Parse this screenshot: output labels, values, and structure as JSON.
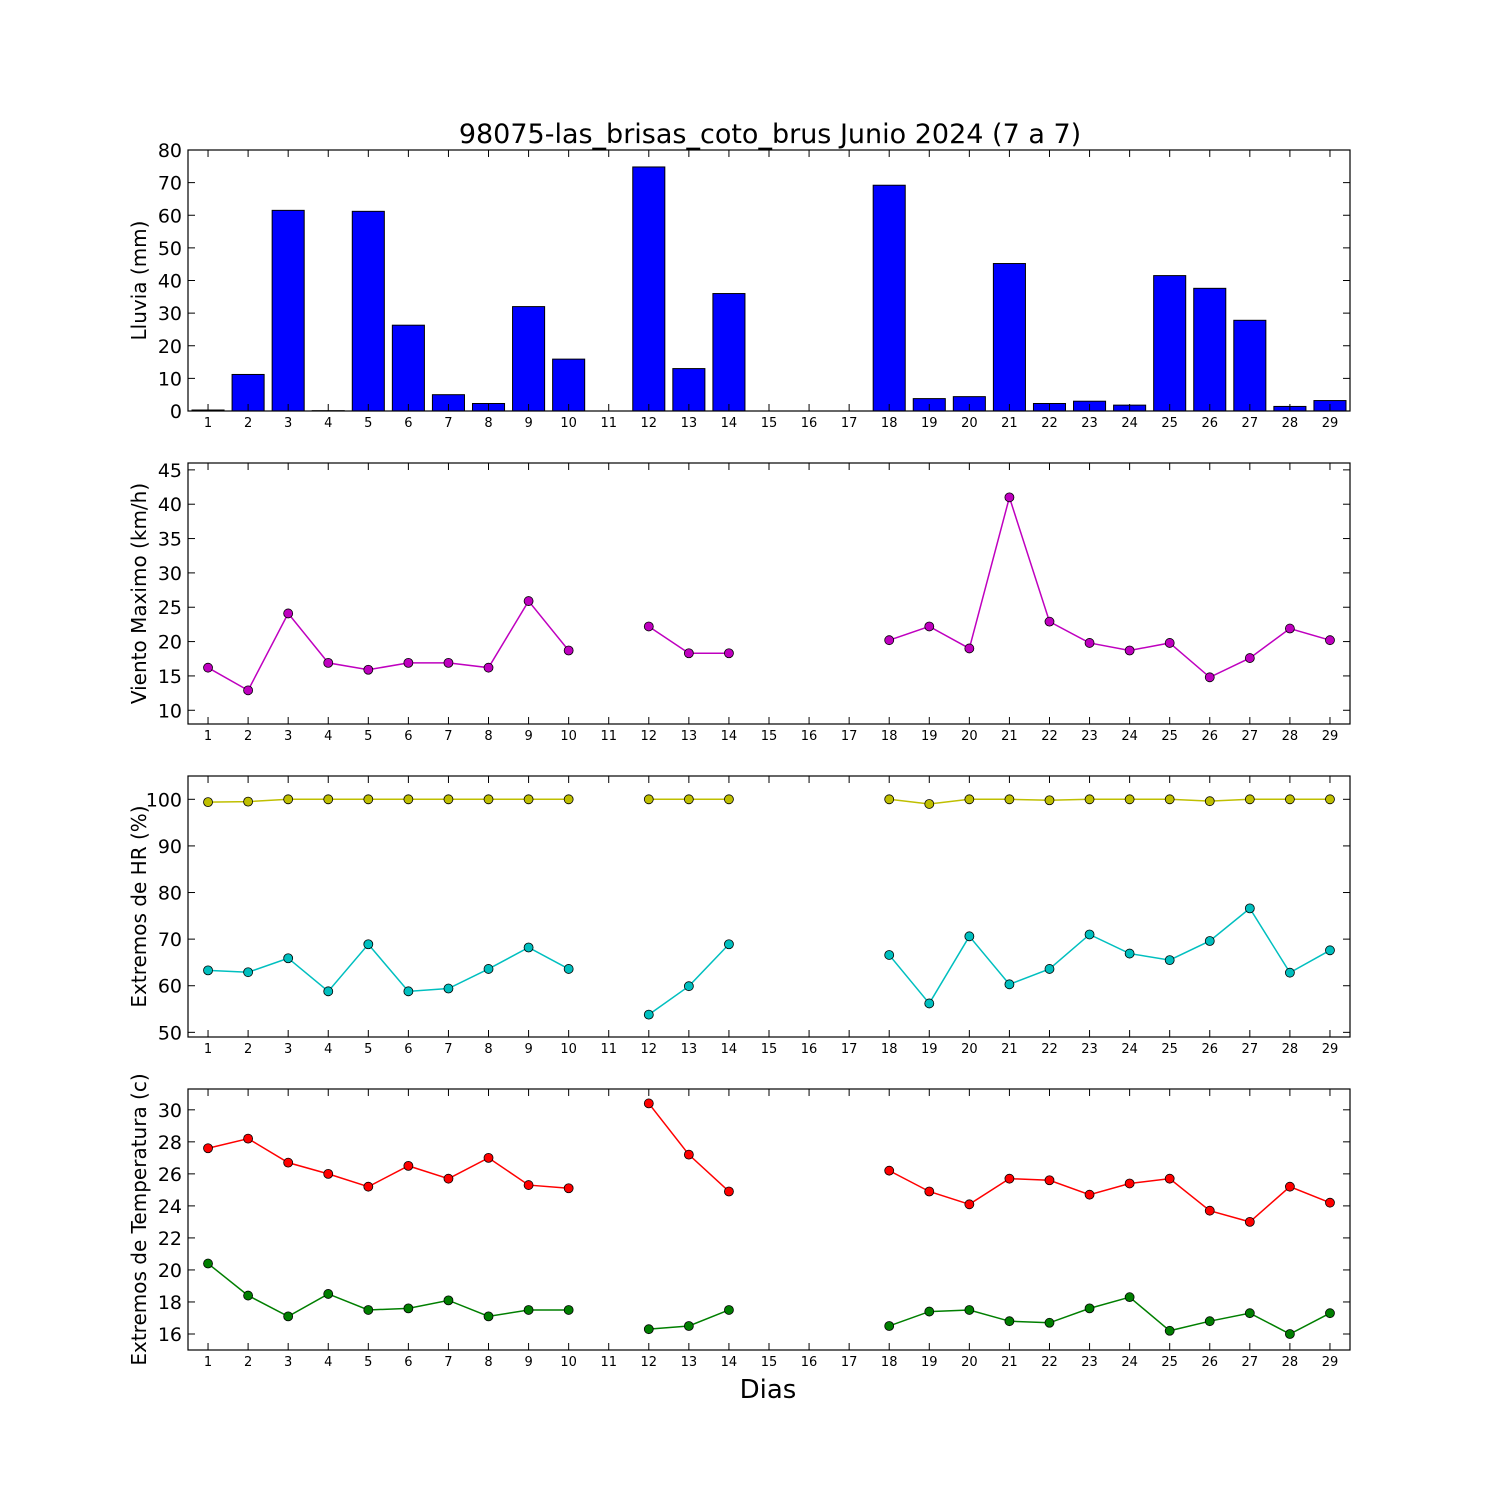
{
  "title": "98075-las_brisas_coto_brus Junio 2024  (7 a 7)",
  "xlabel": "Dias",
  "days": [
    1,
    2,
    3,
    4,
    5,
    6,
    7,
    8,
    9,
    10,
    11,
    12,
    13,
    14,
    15,
    16,
    17,
    18,
    19,
    20,
    21,
    22,
    23,
    24,
    25,
    26,
    27,
    28,
    29
  ],
  "chart_data": [
    {
      "type": "bar",
      "ylabel": "Lluvia (mm)",
      "ylim": [
        0,
        80
      ],
      "yticks": [
        0,
        10,
        20,
        30,
        40,
        50,
        60,
        70,
        80
      ],
      "grid": false,
      "colors": [
        "#0000ff"
      ],
      "series": [
        {
          "values": [
            0.3,
            11.2,
            61.5,
            0.1,
            61.2,
            26.3,
            5.0,
            2.3,
            32.0,
            15.9,
            0,
            74.8,
            13.0,
            36.0,
            0,
            0,
            0,
            69.2,
            3.8,
            4.4,
            45.2,
            2.3,
            3.0,
            1.8,
            41.5,
            37.6,
            27.8,
            1.4,
            3.2
          ]
        }
      ]
    },
    {
      "type": "line",
      "ylabel": "Viento Maximo (km/h)",
      "ylim": [
        8,
        46
      ],
      "yticks": [
        10,
        15,
        20,
        25,
        30,
        35,
        40,
        45
      ],
      "grid": false,
      "colors": [
        "#bf00bf"
      ],
      "series": [
        {
          "values": [
            16.2,
            12.9,
            24.1,
            16.9,
            15.9,
            16.9,
            16.9,
            16.2,
            25.9,
            18.7,
            null,
            22.2,
            18.3,
            18.3,
            null,
            null,
            null,
            20.2,
            22.2,
            19.0,
            41.0,
            22.9,
            19.8,
            18.7,
            19.8,
            14.8,
            17.6,
            21.9,
            20.2
          ]
        }
      ]
    },
    {
      "type": "line",
      "ylabel": "Extremos de HR (%)",
      "ylim": [
        49,
        105
      ],
      "yticks": [
        50,
        60,
        70,
        80,
        90,
        100
      ],
      "grid": false,
      "colors": [
        "#bfbf00",
        "#00bfbf"
      ],
      "series": [
        {
          "values": [
            99.4,
            99.5,
            100,
            100,
            100,
            100,
            100,
            100,
            100,
            100,
            null,
            100,
            100,
            100,
            null,
            null,
            null,
            100,
            99.0,
            100,
            100,
            99.8,
            100,
            100,
            100,
            99.6,
            100,
            100,
            100
          ]
        },
        {
          "values": [
            63.3,
            62.9,
            65.9,
            58.8,
            68.9,
            58.8,
            59.4,
            63.6,
            68.2,
            63.6,
            null,
            53.8,
            59.9,
            68.9,
            null,
            null,
            null,
            66.6,
            56.2,
            70.6,
            60.3,
            63.6,
            71.0,
            66.9,
            65.5,
            69.6,
            76.6,
            62.8,
            67.6
          ]
        }
      ]
    },
    {
      "type": "line",
      "ylabel": "Extremos de Temperatura (c)",
      "ylim": [
        15,
        31.3
      ],
      "yticks": [
        16,
        18,
        20,
        22,
        24,
        26,
        28,
        30
      ],
      "grid": false,
      "colors": [
        "#ff0000",
        "#007f00"
      ],
      "series": [
        {
          "values": [
            27.6,
            28.2,
            26.7,
            26.0,
            25.2,
            26.5,
            25.7,
            27.0,
            25.3,
            25.1,
            null,
            30.4,
            27.2,
            24.9,
            null,
            null,
            null,
            26.2,
            24.9,
            24.1,
            25.7,
            25.6,
            24.7,
            25.4,
            25.7,
            23.7,
            23.0,
            25.2,
            24.2
          ]
        },
        {
          "values": [
            20.4,
            18.4,
            17.1,
            18.5,
            17.5,
            17.6,
            18.1,
            17.1,
            17.5,
            17.5,
            null,
            16.3,
            16.5,
            17.5,
            null,
            null,
            null,
            16.5,
            17.4,
            17.5,
            16.8,
            16.7,
            17.6,
            18.3,
            16.2,
            16.8,
            17.3,
            16.0,
            17.3
          ]
        }
      ]
    }
  ]
}
